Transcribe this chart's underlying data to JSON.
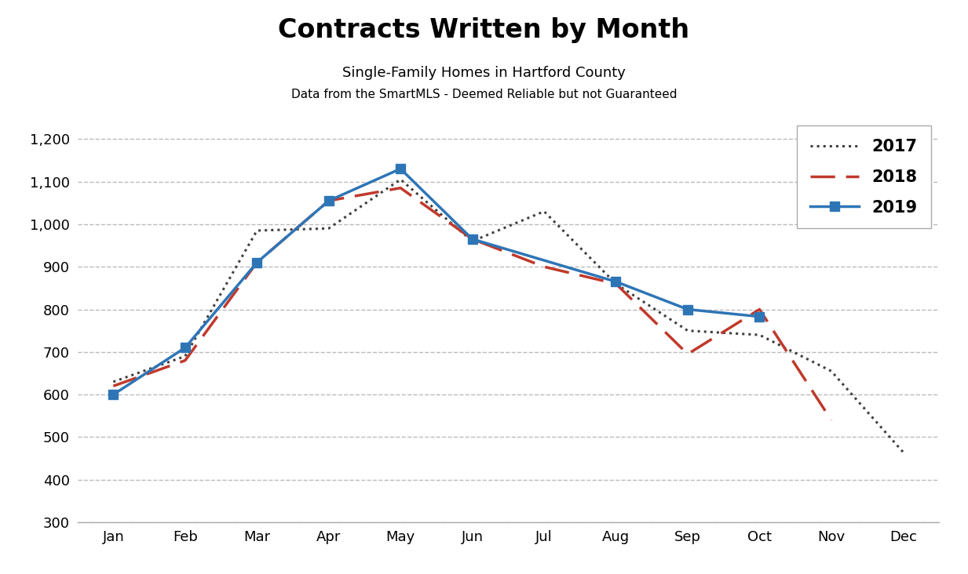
{
  "title": "Contracts Written by Month",
  "subtitle1": "Single-Family Homes in Hartford County",
  "subtitle2": "Data from the SmartMLS - Deemed Reliable but not Guaranteed",
  "months": [
    "Jan",
    "Feb",
    "Mar",
    "Apr",
    "May",
    "Jun",
    "Jul",
    "Aug",
    "Sep",
    "Oct",
    "Nov",
    "Dec"
  ],
  "series_2017": [
    630,
    690,
    985,
    990,
    1105,
    960,
    1030,
    860,
    750,
    740,
    655,
    465
  ],
  "series_2018": [
    620,
    680,
    910,
    1055,
    1085,
    965,
    900,
    860,
    695,
    800,
    540,
    null
  ],
  "series_2019": [
    600,
    710,
    910,
    1055,
    1130,
    965,
    null,
    865,
    800,
    783,
    null,
    null
  ],
  "color_2017": "#404040",
  "color_2018": "#c0392b",
  "color_2019": "#2e75b6",
  "ylim_min": 300,
  "ylim_max": 1250,
  "yticks": [
    300,
    400,
    500,
    600,
    700,
    800,
    900,
    1000,
    1100,
    1200
  ],
  "background_color": "#ffffff",
  "grid_color": "#bbbbbb"
}
